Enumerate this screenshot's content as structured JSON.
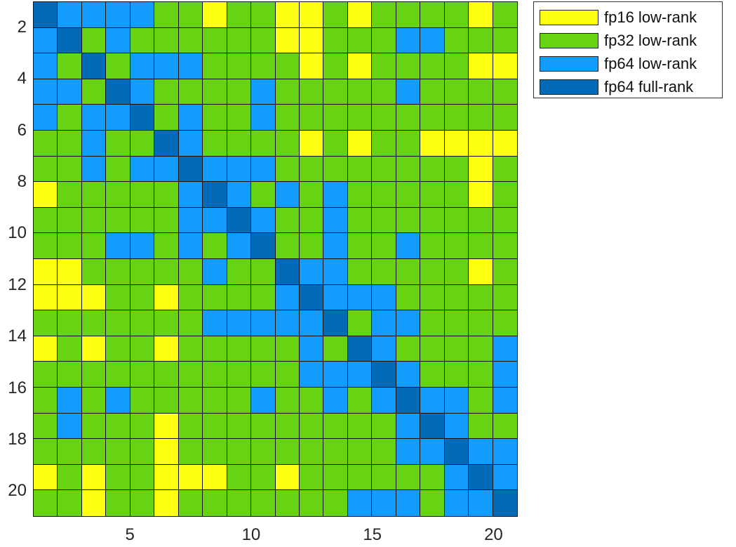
{
  "chart_data": {
    "type": "heatmap",
    "title": "",
    "xlabel": "",
    "ylabel": "",
    "rows": 20,
    "cols": 20,
    "x_ticks": [
      {
        "label": "5",
        "pos": 4
      },
      {
        "label": "10",
        "pos": 9
      },
      {
        "label": "15",
        "pos": 14
      },
      {
        "label": "20",
        "pos": 19
      }
    ],
    "y_ticks": [
      {
        "label": "2",
        "pos": 1
      },
      {
        "label": "4",
        "pos": 3
      },
      {
        "label": "6",
        "pos": 5
      },
      {
        "label": "8",
        "pos": 7
      },
      {
        "label": "10",
        "pos": 9
      },
      {
        "label": "12",
        "pos": 11
      },
      {
        "label": "14",
        "pos": 13
      },
      {
        "label": "16",
        "pos": 15
      },
      {
        "label": "18",
        "pos": 17
      },
      {
        "label": "20",
        "pos": 19
      }
    ],
    "categories": {
      "Y": {
        "label": "fp16 low-rank",
        "color": "#FFFF11"
      },
      "G": {
        "label": "fp32 low-rank",
        "color": "#66D413"
      },
      "B": {
        "label": "fp64 low-rank",
        "color": "#129DFE"
      },
      "D": {
        "label": "fp64 full-rank",
        "color": "#016BB7"
      }
    },
    "matrix": [
      "DBBBBGGYGGYYGYGGGGYG",
      "BDGBGGGGGGYYGGGBBGGG",
      "BGDGBBBGGGGYGYGGGGYY",
      "BBGDBGGGGBGGGGGBGGGG",
      "BGBBDGBGGBGGGGGGGGGG",
      "GGBGGDBGGGGYGYGGYYYY",
      "GGBGBBDBBBGGGGGGGGYG",
      "YGGGGGBDBGBGBGGGGGYG",
      "GGGGGGBBDBGGBGGGGGGG",
      "GGGBBGBGBDGGBGGBGGGG",
      "YYGGGGGBGGDBBGGGGGYG",
      "YYYGGYGGGGBDBBBGGGGG",
      "GGGGGGGBBBBBDGBBGGGG",
      "YGYGGYGGGGGBGDBGGGGB",
      "GGGGGGGGGGGBBBDBGGGB",
      "GBGBGGGGGBGGBGBDBBGB",
      "GBGGGYGGGGGGGGGBDBGG",
      "GGGGGYGGGGGGGGGBBDBB",
      "YGYGGYYYGGYGGGGGGBDB",
      "GGYGGYGGGGGGGBBBGBBD"
    ],
    "legend_position": "outside-right-top",
    "grid": true
  },
  "legend": {
    "items": [
      {
        "label": "fp16 low-rank",
        "color": "#FFFF11"
      },
      {
        "label": "fp32 low-rank",
        "color": "#66D413"
      },
      {
        "label": "fp64 low-rank",
        "color": "#129DFE"
      },
      {
        "label": "fp64 full-rank",
        "color": "#016BB7"
      }
    ]
  }
}
